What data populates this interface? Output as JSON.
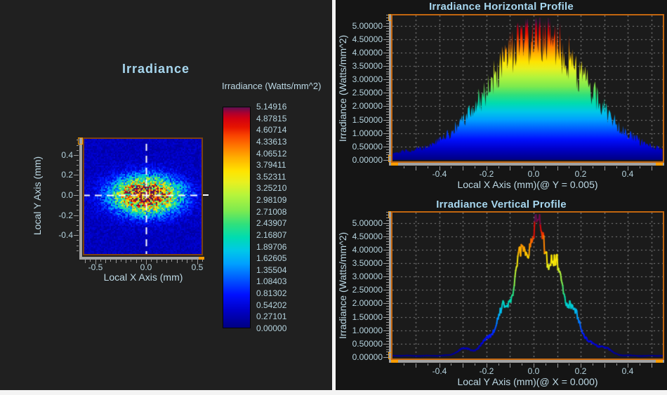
{
  "colors": {
    "panel_left_bg": "#202020",
    "panel_right_bg": "#151515",
    "divider": "#f4f4f4",
    "chart_border": "#c2660f",
    "map_border": "#7c4012",
    "rail": "#a2a2a2",
    "handle": "#ff9d00",
    "tick": "#9a9a9a",
    "gridline": "#a5a5a5",
    "text_tick": "#b5d3de",
    "text_title": "#a7d7ef",
    "text_axis": "#bdd9e5",
    "crosshair": "#ffffff"
  },
  "colormap": [
    [
      0.0,
      "#000082"
    ],
    [
      0.08,
      "#0000c8"
    ],
    [
      0.15,
      "#0010ff"
    ],
    [
      0.22,
      "#0058ff"
    ],
    [
      0.29,
      "#00a0ff"
    ],
    [
      0.35,
      "#00c8e8"
    ],
    [
      0.41,
      "#00dcb0"
    ],
    [
      0.47,
      "#30e07c"
    ],
    [
      0.53,
      "#7cea50"
    ],
    [
      0.6,
      "#b4f43c"
    ],
    [
      0.66,
      "#e8f020"
    ],
    [
      0.71,
      "#ffe400"
    ],
    [
      0.77,
      "#ffb000"
    ],
    [
      0.82,
      "#ff7c00"
    ],
    [
      0.87,
      "#fa4600"
    ],
    [
      0.91,
      "#e61400"
    ],
    [
      0.95,
      "#d20012"
    ],
    [
      0.975,
      "#aa0030"
    ],
    [
      1.0,
      "#5c1050"
    ]
  ],
  "map": {
    "title": "Irradiance",
    "y_axis": {
      "title": "Local Y Axis (mm)",
      "tick_labels": [
        "0.4",
        "0.2",
        "0.0",
        "-0.2",
        "-0.4"
      ],
      "tick_values": [
        0.4,
        0.2,
        0,
        -0.2,
        -0.4
      ]
    },
    "x_axis": {
      "title": "Local X Axis (mm)",
      "tick_labels": [
        "-0.5",
        "0.0",
        "0.5"
      ],
      "tick_values": [
        -0.5,
        0,
        0.5
      ]
    },
    "colorbar": {
      "label": "Irradiance (Watts/mm^2)",
      "tick_labels": [
        "5.14916",
        "4.87815",
        "4.60714",
        "4.33613",
        "4.06512",
        "3.79411",
        "3.52311",
        "3.25210",
        "2.98109",
        "2.71008",
        "2.43907",
        "2.16807",
        "1.89706",
        "1.62605",
        "1.35504",
        "1.08403",
        "0.81302",
        "0.54202",
        "0.27101",
        "0.00000"
      ]
    }
  },
  "profiles": {
    "horizontal": {
      "title": "Irradiance Horizontal Profile",
      "y_axis_title": "Irradiance (Watts/mm^2)",
      "x_axis_title": "Local X Axis (mm)(@ Y = 0.005)",
      "y_tick_labels": [
        "5.00000",
        "4.50000",
        "4.00000",
        "3.50000",
        "3.00000",
        "2.50000",
        "2.00000",
        "1.50000",
        "1.00000",
        "0.50000",
        "0.00000"
      ],
      "y_tick_values": [
        5,
        4.5,
        4,
        3.5,
        3,
        2.5,
        2,
        1.5,
        1,
        0.5,
        0
      ],
      "x_tick_labels": [
        "-0.4",
        "-0.2",
        "0.0",
        "0.2",
        "0.4"
      ],
      "x_tick_values": [
        -0.4,
        -0.2,
        0,
        0.2,
        0.4
      ]
    },
    "vertical": {
      "title": "Irradiance Vertical Profile",
      "y_axis_title": "Irradiance (Watts/mm^2)",
      "x_axis_title": "Local Y Axis (mm)(@ X = 0.000)",
      "y_tick_labels": [
        "5.00000",
        "4.50000",
        "4.00000",
        "3.50000",
        "3.00000",
        "2.50000",
        "2.00000",
        "1.50000",
        "1.00000",
        "0.50000",
        "0.00000"
      ],
      "y_tick_values": [
        5,
        4.5,
        4,
        3.5,
        3,
        2.5,
        2,
        1.5,
        1,
        0.5,
        0
      ],
      "x_tick_labels": [
        "-0.4",
        "-0.2",
        "0.0",
        "0.2",
        "0.4"
      ],
      "x_tick_values": [
        -0.4,
        -0.2,
        0,
        0.2,
        0.4
      ]
    }
  },
  "chart_data": [
    {
      "id": "irradiance_map",
      "type": "heatmap",
      "title": "Irradiance",
      "xlabel": "Local X Axis (mm)",
      "ylabel": "Local Y Axis (mm)",
      "x_range": [
        -0.61,
        0.55
      ],
      "y_range": [
        -0.59,
        0.56
      ],
      "scale": {
        "min": 0.0,
        "max": 5.14916,
        "label": "Irradiance (Watts/mm^2)"
      },
      "crosshair_mm": [
        0.0,
        0.0
      ],
      "spot": {
        "model": "elliptical-gaussian-speckle",
        "peak": 5.0,
        "baseline": 0.33,
        "sigma_x_mm": 0.21,
        "sigma_y_mm": 0.118,
        "center_mm": [
          0.0,
          0.0
        ],
        "speckle_min": 0.5,
        "speckle_span": 1.05,
        "seed": 11
      }
    },
    {
      "id": "horizontal_profile",
      "type": "area",
      "title": "Irradiance Horizontal Profile",
      "xlabel": "Local X Axis (mm)(@ Y = 0.005)",
      "ylabel": "Irradiance (Watts/mm^2)",
      "x_range": [
        -0.6,
        0.55
      ],
      "y_range": [
        0,
        5.42
      ],
      "x_grid_step": 0.1,
      "y_grid_step": 0.5,
      "grid": "dotted",
      "profile": {
        "model": "gaussian-speckle",
        "peak": 4.3,
        "baseline": 0.25,
        "sigma_mm": 0.2,
        "center_mm": 0.02,
        "noise_min": 0.78,
        "noise_span": 0.47,
        "seed": 29
      }
    },
    {
      "id": "vertical_profile",
      "type": "line",
      "title": "Irradiance Vertical Profile",
      "xlabel": "Local Y Axis (mm)(@ X = 0.000)",
      "ylabel": "Irradiance (Watts/mm^2)",
      "x_range": [
        -0.6,
        0.55
      ],
      "y_range": [
        0,
        5.42
      ],
      "x_grid_step": 0.1,
      "y_grid_step": 0.5,
      "grid": "dotted",
      "profile": {
        "model": "gaussian-ripple",
        "peak": 4.45,
        "baseline": 0.05,
        "sigma_mm": 0.107,
        "center_mm": 0.015,
        "ripple_amp": 0.12,
        "ripple_freq": 80,
        "ripple2_amp": 0.06,
        "ripple2_freq": 33,
        "shoulder_amp": 0.22,
        "shoulder_pos": 0.3,
        "shoulder_sigma": 0.025,
        "noise_min": 0.92,
        "noise_span": 0.16,
        "seed": 57
      }
    }
  ]
}
